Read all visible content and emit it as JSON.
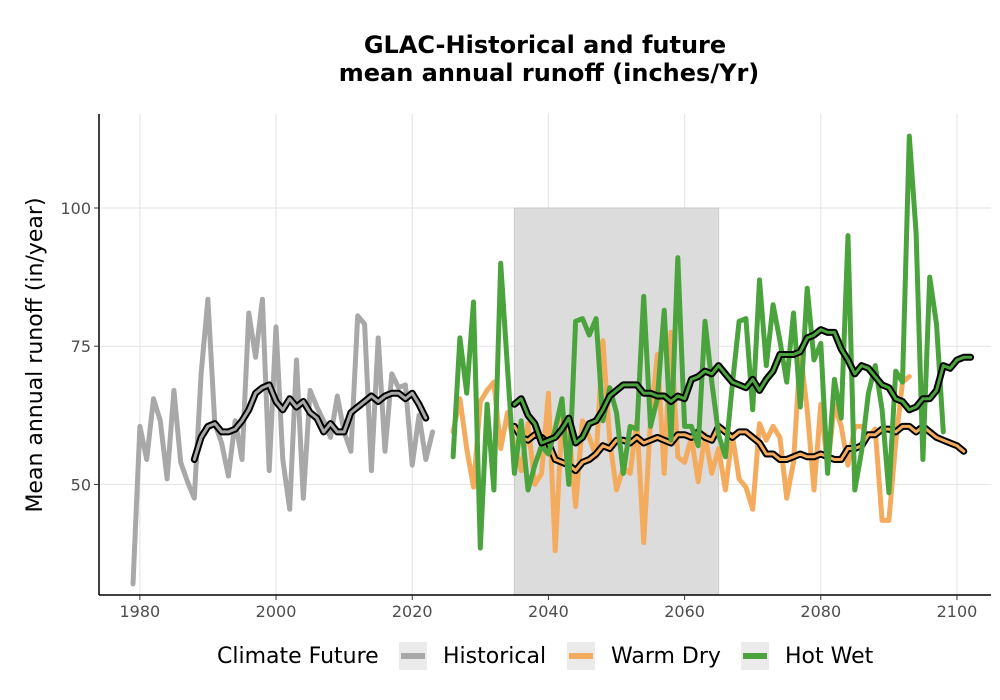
{
  "chart_data": {
    "type": "line",
    "title_line1": "GLAC-Historical and future",
    "title_line2": "mean annual runoff (inches/Yr)",
    "xlabel": "",
    "ylabel": "Mean annual runoff (in/year)",
    "xlim": [
      1974,
      2105
    ],
    "ylim": [
      30,
      117
    ],
    "x_ticks": [
      1980,
      2000,
      2020,
      2040,
      2060,
      2080,
      2100
    ],
    "y_ticks": [
      50,
      75,
      100
    ],
    "grid": true,
    "shaded_period": [
      2035,
      2065
    ],
    "shaded_ylim": [
      30,
      100
    ],
    "legend": {
      "title": "Climate Future",
      "position": "bottom",
      "items": [
        "Historical",
        "Warm Dry",
        "Hot Wet"
      ]
    },
    "colors": {
      "Historical": "#a8a8a8",
      "Warm Dry": "#f5ab5e",
      "Hot Wet": "#4aa33c",
      "smooth": "#000000",
      "shade": "#dcdcdc",
      "grid": "#e3e3e3"
    },
    "series": [
      {
        "name": "Historical",
        "x_start": 1979,
        "values": [
          32,
          60.5,
          54.5,
          65.5,
          61.5,
          51,
          67,
          54,
          50.5,
          47.5,
          70,
          83.5,
          61,
          57.5,
          51.5,
          61.5,
          54.5,
          81,
          73,
          83.5,
          52.5,
          78.5,
          54.5,
          45.5,
          72.5,
          47.5,
          67,
          64,
          61.5,
          58.5,
          66,
          59.5,
          56,
          80.5,
          79,
          52.5,
          76.5,
          56,
          70,
          67.5,
          68,
          53.5,
          62.5,
          54.5,
          59.5
        ]
      },
      {
        "name": "Historical (smoothed)",
        "x_start": 1988,
        "values": [
          54.5,
          58.5,
          60.5,
          61,
          59.5,
          59.5,
          60,
          61.5,
          63.5,
          66.5,
          67.5,
          68,
          65,
          63.5,
          65.5,
          64,
          65,
          63,
          62,
          59.5,
          61,
          59.5,
          59.5,
          63,
          64,
          65,
          66,
          65,
          66,
          66.5,
          66.5,
          65.5,
          66.5,
          64.5,
          62
        ]
      },
      {
        "name": "Warm Dry",
        "x_start": 2026,
        "values": [
          59.5,
          65.5,
          56.5,
          49.5,
          65,
          67,
          68.5,
          56.5,
          63,
          57,
          52.5,
          61,
          50,
          52,
          66.5,
          38,
          62,
          60.5,
          46,
          61.5,
          58.5,
          55,
          76,
          58,
          49,
          53,
          52,
          61.5,
          39.5,
          61.5,
          73.5,
          52,
          77.5,
          55,
          54,
          58.5,
          50.5,
          59,
          52,
          56.5,
          49,
          59,
          51,
          49.5,
          45.5,
          61,
          58,
          60.5,
          58.5,
          47.5,
          54,
          74,
          63.5,
          49,
          64.5,
          53,
          64.5,
          60.5,
          53.5,
          60.5,
          60.5,
          58.5,
          60,
          43.5,
          43.5,
          57.5,
          68.5,
          69.5
        ]
      },
      {
        "name": "Warm Dry (smoothed)",
        "x_start": 2035,
        "values": [
          60.5,
          58.5,
          58,
          59,
          58.5,
          57.5,
          54.5,
          54,
          53.5,
          52.5,
          54,
          54.5,
          55.5,
          57,
          56.5,
          58,
          58,
          57.5,
          58.5,
          57.5,
          58,
          58.5,
          58,
          57.5,
          59,
          59,
          58.5,
          59.5,
          58.5,
          58,
          60.5,
          59.5,
          58.5,
          59.5,
          59.5,
          58.5,
          57.5,
          55.5,
          55.5,
          54.5,
          54.5,
          55,
          55.5,
          55,
          55,
          55.5,
          55,
          54.5,
          54.5,
          56.5,
          56.5,
          57,
          59,
          59,
          60,
          60,
          59.5,
          60.5,
          60.5,
          59.5,
          60.5,
          59.5,
          58.5,
          58,
          57.5,
          57,
          56
        ]
      },
      {
        "name": "Hot Wet",
        "x_start": 2026,
        "values": [
          55,
          76.5,
          66.5,
          83,
          38.5,
          64.5,
          49,
          90,
          71,
          52,
          61.5,
          49,
          53.5,
          57,
          55.5,
          60,
          65.5,
          50,
          79.5,
          80,
          77,
          80,
          61.5,
          67.5,
          63,
          52,
          60.5,
          60,
          84,
          60.5,
          65.5,
          81.5,
          58,
          91,
          60.5,
          60.5,
          57,
          79.5,
          68.5,
          59,
          55,
          68,
          79.5,
          80,
          63.5,
          87,
          71.5,
          82.5,
          76,
          68.5,
          81,
          64,
          85.5,
          72.5,
          75.5,
          52,
          69,
          62,
          95,
          49,
          56,
          66.5,
          71.5,
          63.5,
          48.5,
          70.5,
          68.5,
          113,
          95.5,
          54.5,
          87.5,
          79,
          59.5
        ]
      },
      {
        "name": "Hot Wet (smoothed)",
        "x_start": 2035,
        "values": [
          64.5,
          65.5,
          62.5,
          61,
          57.5,
          58,
          58.5,
          60,
          62,
          57.5,
          58.5,
          61,
          61.5,
          63.5,
          66,
          67,
          68,
          68,
          68,
          66.5,
          66.5,
          66,
          66,
          65,
          66,
          65.5,
          69,
          69.5,
          70.5,
          70,
          71.5,
          70,
          68.5,
          68,
          67.5,
          69,
          67,
          69,
          70.5,
          73.5,
          73.5,
          73.5,
          74,
          76.5,
          77,
          78,
          77.5,
          77.5,
          74.5,
          72.5,
          70,
          71.5,
          71,
          69.5,
          68,
          67.5,
          65.5,
          65,
          63.5,
          64,
          65.5,
          65.5,
          67,
          71.5,
          71,
          72.5,
          73,
          73
        ]
      }
    ]
  }
}
